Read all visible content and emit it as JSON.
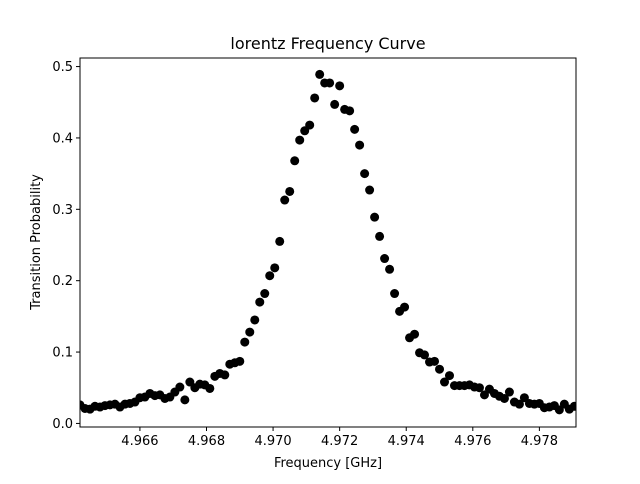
{
  "chart_data": {
    "type": "scatter",
    "title": "lorentz Frequency Curve",
    "xlabel": "Frequency [GHz]",
    "ylabel": "Transition Probability",
    "xlim": [
      4.9642,
      4.9791
    ],
    "ylim": [
      -0.005,
      0.512
    ],
    "xticks": [
      {
        "value": 4.966,
        "label": "4.966"
      },
      {
        "value": 4.968,
        "label": "4.968"
      },
      {
        "value": 4.97,
        "label": "4.970"
      },
      {
        "value": 4.972,
        "label": "4.972"
      },
      {
        "value": 4.974,
        "label": "4.974"
      },
      {
        "value": 4.976,
        "label": "4.976"
      },
      {
        "value": 4.978,
        "label": "4.978"
      }
    ],
    "yticks": [
      {
        "value": 0.0,
        "label": "0.0"
      },
      {
        "value": 0.1,
        "label": "0.1"
      },
      {
        "value": 0.2,
        "label": "0.2"
      },
      {
        "value": 0.3,
        "label": "0.3"
      },
      {
        "value": 0.4,
        "label": "0.4"
      },
      {
        "value": 0.5,
        "label": "0.5"
      }
    ],
    "grid": false,
    "marker_color": "#000000",
    "series": [
      {
        "x": [
          4.9642,
          4.96435,
          4.9645,
          4.96465,
          4.9648,
          4.96495,
          4.9651,
          4.96525,
          4.9654,
          4.96555,
          4.9657,
          4.96585,
          4.966,
          4.96615,
          4.9663,
          4.96645,
          4.9666,
          4.96675,
          4.9669,
          4.96705,
          4.9672,
          4.96735,
          4.9675,
          4.96765,
          4.9678,
          4.96795,
          4.9681,
          4.96825,
          4.9684,
          4.96855,
          4.9687,
          4.96885,
          4.969,
          4.96915,
          4.9693,
          4.96945,
          4.9696,
          4.96975,
          4.9699,
          4.97005,
          4.9702,
          4.97035,
          4.9705,
          4.97065,
          4.9708,
          4.97095,
          4.9711,
          4.97125,
          4.9714,
          4.97155,
          4.9717,
          4.97185,
          4.972,
          4.97215,
          4.9723,
          4.97245,
          4.9726,
          4.97275,
          4.9729,
          4.97305,
          4.9732,
          4.97335,
          4.9735,
          4.97365,
          4.9738,
          4.97395,
          4.9741,
          4.97425,
          4.9744,
          4.97455,
          4.9747,
          4.97485,
          4.975,
          4.97515,
          4.9753,
          4.97545,
          4.9756,
          4.97575,
          4.9759,
          4.97605,
          4.9762,
          4.97635,
          4.9765,
          4.97665,
          4.9768,
          4.97695,
          4.9771,
          4.97725,
          4.9774,
          4.97755,
          4.9777,
          4.97785,
          4.978,
          4.97815,
          4.9783,
          4.97845,
          4.9786,
          4.97875,
          4.9789,
          4.97905
        ],
        "y": [
          0.026,
          0.021,
          0.02,
          0.024,
          0.023,
          0.025,
          0.026,
          0.027,
          0.023,
          0.027,
          0.028,
          0.03,
          0.036,
          0.037,
          0.042,
          0.039,
          0.04,
          0.035,
          0.037,
          0.044,
          0.051,
          0.033,
          0.058,
          0.05,
          0.055,
          0.054,
          0.049,
          0.066,
          0.07,
          0.068,
          0.083,
          0.085,
          0.087,
          0.114,
          0.128,
          0.145,
          0.17,
          0.182,
          0.207,
          0.218,
          0.255,
          0.313,
          0.325,
          0.368,
          0.397,
          0.41,
          0.418,
          0.456,
          0.489,
          0.477,
          0.477,
          0.447,
          0.473,
          0.44,
          0.438,
          0.412,
          0.39,
          0.35,
          0.327,
          0.289,
          0.262,
          0.231,
          0.216,
          0.182,
          0.157,
          0.163,
          0.12,
          0.125,
          0.099,
          0.096,
          0.086,
          0.087,
          0.076,
          0.058,
          0.067,
          0.053,
          0.053,
          0.053,
          0.054,
          0.051,
          0.05,
          0.04,
          0.048,
          0.042,
          0.038,
          0.035,
          0.044,
          0.03,
          0.027,
          0.036,
          0.028,
          0.027,
          0.028,
          0.022,
          0.023,
          0.025,
          0.019,
          0.027,
          0.02,
          0.024
        ]
      }
    ]
  }
}
